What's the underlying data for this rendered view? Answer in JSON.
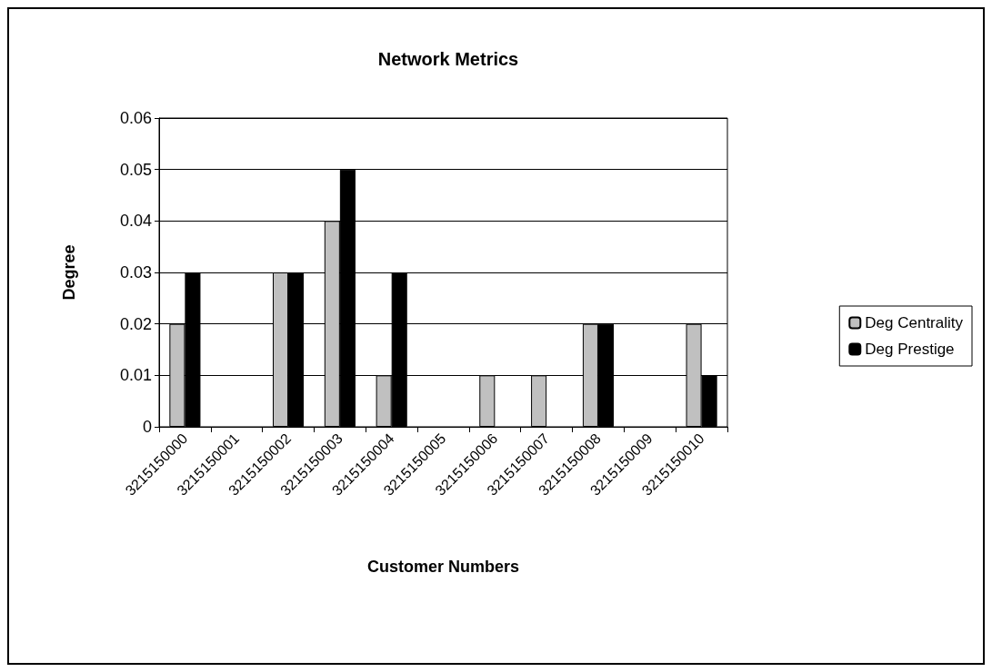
{
  "chart_data": {
    "type": "bar",
    "title": "Network Metrics",
    "xlabel": "Customer Numbers",
    "ylabel": "Degree",
    "categories": [
      "3215150000",
      "3215150001",
      "3215150002",
      "3215150003",
      "3215150004",
      "3215150005",
      "3215150006",
      "3215150007",
      "3215150008",
      "3215150009",
      "3215150010"
    ],
    "series": [
      {
        "name": "Deg Centrality",
        "color": "#c0c0c0",
        "values": [
          0.02,
          0,
          0.03,
          0.04,
          0.01,
          0,
          0.01,
          0.01,
          0.02,
          0,
          0.02
        ]
      },
      {
        "name": "Deg Prestige",
        "color": "#000000",
        "values": [
          0.03,
          0,
          0.03,
          0.05,
          0.03,
          0,
          0,
          0,
          0.02,
          0,
          0.01
        ]
      }
    ],
    "ylim": [
      0,
      0.06
    ],
    "yticks": [
      0,
      0.01,
      0.02,
      0.03,
      0.04,
      0.05,
      0.06
    ],
    "grid": "y",
    "legend": "right"
  }
}
